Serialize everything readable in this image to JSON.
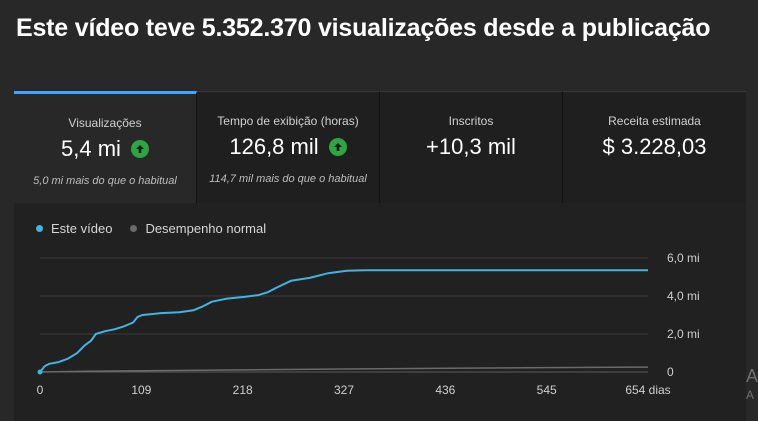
{
  "headline": "Este vídeo teve 5.352.370 visualizações desde a publicação",
  "cards": [
    {
      "title": "Visualizações",
      "value": "5,4 mi",
      "trend_icon": "arrow-up-icon",
      "subtitle": "5,0 mi mais do que o habitual",
      "active": true
    },
    {
      "title": "Tempo de exibição (horas)",
      "value": "126,8 mil",
      "trend_icon": "arrow-up-icon",
      "subtitle": "114,7 mil mais do que o habitual",
      "active": false
    },
    {
      "title": "Inscritos",
      "value": "+10,3 mil",
      "subtitle": "",
      "active": false
    },
    {
      "title": "Receita estimada",
      "value": "$ 3.228,03",
      "subtitle": "",
      "active": false
    }
  ],
  "legend": {
    "this_video": "Este vídeo",
    "typical": "Desempenho normal"
  },
  "colors": {
    "accent": "#3ea6ff",
    "line_this_video": "#41b4e3",
    "line_typical": "#6b6b6b",
    "trend_up": "#2ba640"
  },
  "chart_data": {
    "type": "line",
    "x_unit": "dias",
    "x_ticks": [
      "0",
      "109",
      "218",
      "327",
      "436",
      "545",
      "654 dias"
    ],
    "x_tick_values": [
      0,
      109,
      218,
      327,
      436,
      545,
      654
    ],
    "y_ticks": [
      "0",
      "2,0 mi",
      "4,0 mi",
      "6,0 mi"
    ],
    "y_tick_values": [
      0,
      2000000,
      4000000,
      6000000
    ],
    "ylim": [
      0,
      6000000
    ],
    "xlim": [
      0,
      654
    ],
    "grid": true,
    "legend_position": "top-left",
    "series": [
      {
        "name": "Este vídeo",
        "x": [
          0,
          5,
          10,
          20,
          30,
          40,
          48,
          55,
          60,
          70,
          80,
          90,
          95,
          100,
          105,
          110,
          120,
          130,
          150,
          165,
          175,
          185,
          200,
          220,
          235,
          245,
          255,
          270,
          290,
          310,
          330,
          350,
          400,
          500,
          600,
          654
        ],
        "y": [
          0,
          300000,
          430000,
          520000,
          700000,
          1000000,
          1400000,
          1650000,
          2000000,
          2150000,
          2250000,
          2400000,
          2500000,
          2600000,
          2900000,
          3000000,
          3050000,
          3100000,
          3150000,
          3250000,
          3450000,
          3700000,
          3850000,
          3950000,
          4050000,
          4200000,
          4450000,
          4800000,
          4950000,
          5200000,
          5330000,
          5350000,
          5350000,
          5352000,
          5352370,
          5352370
        ]
      },
      {
        "name": "Desempenho normal",
        "x": [
          0,
          50,
          109,
          218,
          327,
          436,
          545,
          654
        ],
        "y": [
          0,
          40000,
          70000,
          110000,
          160000,
          200000,
          230000,
          260000
        ]
      }
    ]
  }
}
